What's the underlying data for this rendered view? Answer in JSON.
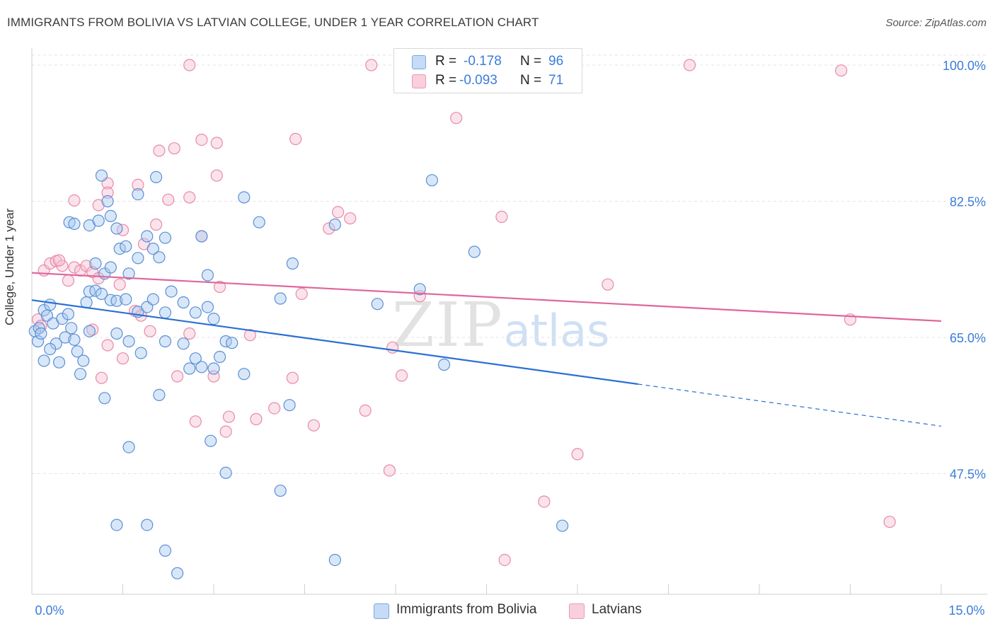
{
  "title": "IMMIGRANTS FROM BOLIVIA VS LATVIAN COLLEGE, UNDER 1 YEAR CORRELATION CHART",
  "source": "Source: ZipAtlas.com",
  "watermark": {
    "zip": "ZIP",
    "atlas": "atlas"
  },
  "legend": {
    "rows": [
      {
        "r_label": "R =",
        "r_value": "-0.178",
        "n_label": "N =",
        "n_value": "96",
        "color": "#a9c9f0"
      },
      {
        "r_label": "R =",
        "r_value": "-0.093",
        "n_label": "N =",
        "n_value": "71",
        "color": "#f4b3c8"
      }
    ]
  },
  "bottom_legend": {
    "series1": "Immigrants from Bolivia",
    "series2": "Latvians"
  },
  "colors": {
    "blue_fill": "#a9c9f0",
    "blue_stroke": "#5b8fd6",
    "blue_line": "#2a6fd4",
    "pink_fill": "#f6c1d2",
    "pink_stroke": "#e88aa8",
    "pink_line": "#e0669a",
    "axis_text": "#3b7dd8",
    "grid": "#e3e3e3"
  },
  "chart_data": {
    "type": "scatter",
    "title": "IMMIGRANTS FROM BOLIVIA VS LATVIAN COLLEGE, UNDER 1 YEAR CORRELATION CHART",
    "xlabel": "",
    "ylabel": "College, Under 1 year",
    "xlim": [
      0,
      15
    ],
    "ylim": [
      32,
      102
    ],
    "x_tick_labels": [
      "0.0%",
      "15.0%"
    ],
    "y_ticks": [
      47.5,
      65.0,
      82.5,
      100.0
    ],
    "y_tick_labels": [
      "47.5%",
      "65.0%",
      "82.5%",
      "100.0%"
    ],
    "series": [
      {
        "name": "Immigrants from Bolivia",
        "R": -0.178,
        "N": 96,
        "trend": {
          "x0": 0.0,
          "y0": 69.8,
          "x1": 10.0,
          "y1": 59.0,
          "dash_x1": 15.0,
          "dash_y1": 53.6
        },
        "points": [
          [
            0.05,
            65.8
          ],
          [
            0.1,
            64.5
          ],
          [
            0.12,
            66.2
          ],
          [
            0.15,
            65.5
          ],
          [
            0.2,
            68.5
          ],
          [
            0.25,
            67.8
          ],
          [
            0.3,
            69.2
          ],
          [
            0.35,
            66.8
          ],
          [
            0.4,
            64.2
          ],
          [
            0.45,
            61.8
          ],
          [
            0.5,
            67.4
          ],
          [
            0.55,
            65.0
          ],
          [
            0.6,
            68.0
          ],
          [
            0.65,
            66.2
          ],
          [
            0.7,
            64.7
          ],
          [
            0.75,
            63.2
          ],
          [
            0.8,
            60.3
          ],
          [
            0.85,
            62.0
          ],
          [
            0.9,
            69.5
          ],
          [
            0.95,
            65.8
          ],
          [
            0.2,
            62.0
          ],
          [
            0.3,
            63.5
          ],
          [
            0.62,
            79.8
          ],
          [
            0.7,
            79.6
          ],
          [
            0.95,
            79.4
          ],
          [
            1.1,
            80.0
          ],
          [
            1.25,
            82.5
          ],
          [
            1.15,
            85.8
          ],
          [
            1.3,
            80.6
          ],
          [
            1.4,
            79.0
          ],
          [
            1.05,
            74.5
          ],
          [
            1.2,
            73.2
          ],
          [
            1.3,
            74.0
          ],
          [
            1.45,
            76.4
          ],
          [
            1.55,
            76.7
          ],
          [
            1.6,
            73.2
          ],
          [
            1.75,
            75.2
          ],
          [
            1.9,
            78.0
          ],
          [
            2.0,
            76.4
          ],
          [
            2.1,
            75.3
          ],
          [
            0.95,
            70.9
          ],
          [
            1.05,
            71.0
          ],
          [
            1.15,
            70.6
          ],
          [
            1.3,
            69.8
          ],
          [
            1.4,
            69.7
          ],
          [
            1.55,
            69.9
          ],
          [
            1.75,
            68.3
          ],
          [
            1.9,
            68.9
          ],
          [
            2.0,
            69.9
          ],
          [
            2.2,
            68.2
          ],
          [
            1.4,
            65.5
          ],
          [
            1.6,
            64.5
          ],
          [
            1.8,
            63.0
          ],
          [
            2.2,
            64.5
          ],
          [
            2.5,
            64.2
          ],
          [
            2.6,
            61.0
          ],
          [
            2.7,
            62.3
          ],
          [
            2.8,
            61.2
          ],
          [
            3.0,
            61.0
          ],
          [
            3.2,
            64.5
          ],
          [
            2.3,
            70.9
          ],
          [
            2.5,
            69.5
          ],
          [
            2.7,
            68.2
          ],
          [
            2.9,
            68.9
          ],
          [
            3.0,
            67.4
          ],
          [
            3.1,
            62.5
          ],
          [
            3.3,
            64.3
          ],
          [
            3.5,
            60.3
          ],
          [
            3.75,
            79.8
          ],
          [
            3.5,
            83.0
          ],
          [
            1.75,
            83.4
          ],
          [
            2.05,
            85.6
          ],
          [
            2.2,
            77.8
          ],
          [
            2.8,
            78.0
          ],
          [
            2.9,
            73.0
          ],
          [
            4.1,
            70.0
          ],
          [
            4.3,
            74.5
          ],
          [
            5.0,
            79.5
          ],
          [
            5.7,
            69.3
          ],
          [
            6.4,
            71.2
          ],
          [
            6.6,
            85.2
          ],
          [
            7.3,
            76.0
          ],
          [
            6.8,
            61.5
          ],
          [
            4.25,
            56.3
          ],
          [
            2.1,
            57.6
          ],
          [
            1.2,
            57.2
          ],
          [
            1.6,
            50.9
          ],
          [
            2.95,
            51.7
          ],
          [
            3.2,
            47.6
          ],
          [
            4.1,
            45.3
          ],
          [
            1.4,
            40.9
          ],
          [
            1.9,
            40.9
          ],
          [
            2.2,
            37.6
          ],
          [
            2.4,
            34.7
          ],
          [
            5.0,
            36.4
          ],
          [
            8.75,
            40.8
          ]
        ]
      },
      {
        "name": "Latvians",
        "R": -0.093,
        "N": 71,
        "trend": {
          "x0": 0.0,
          "y0": 73.3,
          "x1": 15.0,
          "y1": 67.1
        },
        "points": [
          [
            0.1,
            67.3
          ],
          [
            0.15,
            66.5
          ],
          [
            0.2,
            73.6
          ],
          [
            0.3,
            74.5
          ],
          [
            0.4,
            74.8
          ],
          [
            0.5,
            74.2
          ],
          [
            0.6,
            72.3
          ],
          [
            0.7,
            74.0
          ],
          [
            0.8,
            73.6
          ],
          [
            0.9,
            74.2
          ],
          [
            1.0,
            73.4
          ],
          [
            1.1,
            72.6
          ],
          [
            0.7,
            82.6
          ],
          [
            1.1,
            82.0
          ],
          [
            1.25,
            84.8
          ],
          [
            1.25,
            83.6
          ],
          [
            1.5,
            78.8
          ],
          [
            1.75,
            84.6
          ],
          [
            1.85,
            77.0
          ],
          [
            2.05,
            79.5
          ],
          [
            2.1,
            89.0
          ],
          [
            2.35,
            89.3
          ],
          [
            2.6,
            83.0
          ],
          [
            2.8,
            90.4
          ],
          [
            3.05,
            90.0
          ],
          [
            3.05,
            85.8
          ],
          [
            2.25,
            82.7
          ],
          [
            2.8,
            78.0
          ],
          [
            3.1,
            71.5
          ],
          [
            1.45,
            71.8
          ],
          [
            1.7,
            68.4
          ],
          [
            1.8,
            67.8
          ],
          [
            1.95,
            65.8
          ],
          [
            2.4,
            60.0
          ],
          [
            2.6,
            65.5
          ],
          [
            2.7,
            54.2
          ],
          [
            3.0,
            60.0
          ],
          [
            3.2,
            52.9
          ],
          [
            3.25,
            54.8
          ],
          [
            3.6,
            65.3
          ],
          [
            3.7,
            54.5
          ],
          [
            4.0,
            55.9
          ],
          [
            4.3,
            59.8
          ],
          [
            4.45,
            70.6
          ],
          [
            4.65,
            53.7
          ],
          [
            4.9,
            79.0
          ],
          [
            5.05,
            81.1
          ],
          [
            5.25,
            80.3
          ],
          [
            5.5,
            55.6
          ],
          [
            5.9,
            47.9
          ],
          [
            5.95,
            63.7
          ],
          [
            6.1,
            60.1
          ],
          [
            6.4,
            70.3
          ],
          [
            7.0,
            93.2
          ],
          [
            7.75,
            80.5
          ],
          [
            8.45,
            43.9
          ],
          [
            9.0,
            50.0
          ],
          [
            9.5,
            71.8
          ],
          [
            10.85,
            100.0
          ],
          [
            13.35,
            99.3
          ],
          [
            0.45,
            74.9
          ],
          [
            1.0,
            66.0
          ],
          [
            1.15,
            59.8
          ],
          [
            1.25,
            64.0
          ],
          [
            1.5,
            62.3
          ],
          [
            2.6,
            100.0
          ],
          [
            5.6,
            100.0
          ],
          [
            4.35,
            90.5
          ],
          [
            7.8,
            36.4
          ],
          [
            13.5,
            67.3
          ],
          [
            14.15,
            41.3
          ]
        ]
      }
    ]
  }
}
